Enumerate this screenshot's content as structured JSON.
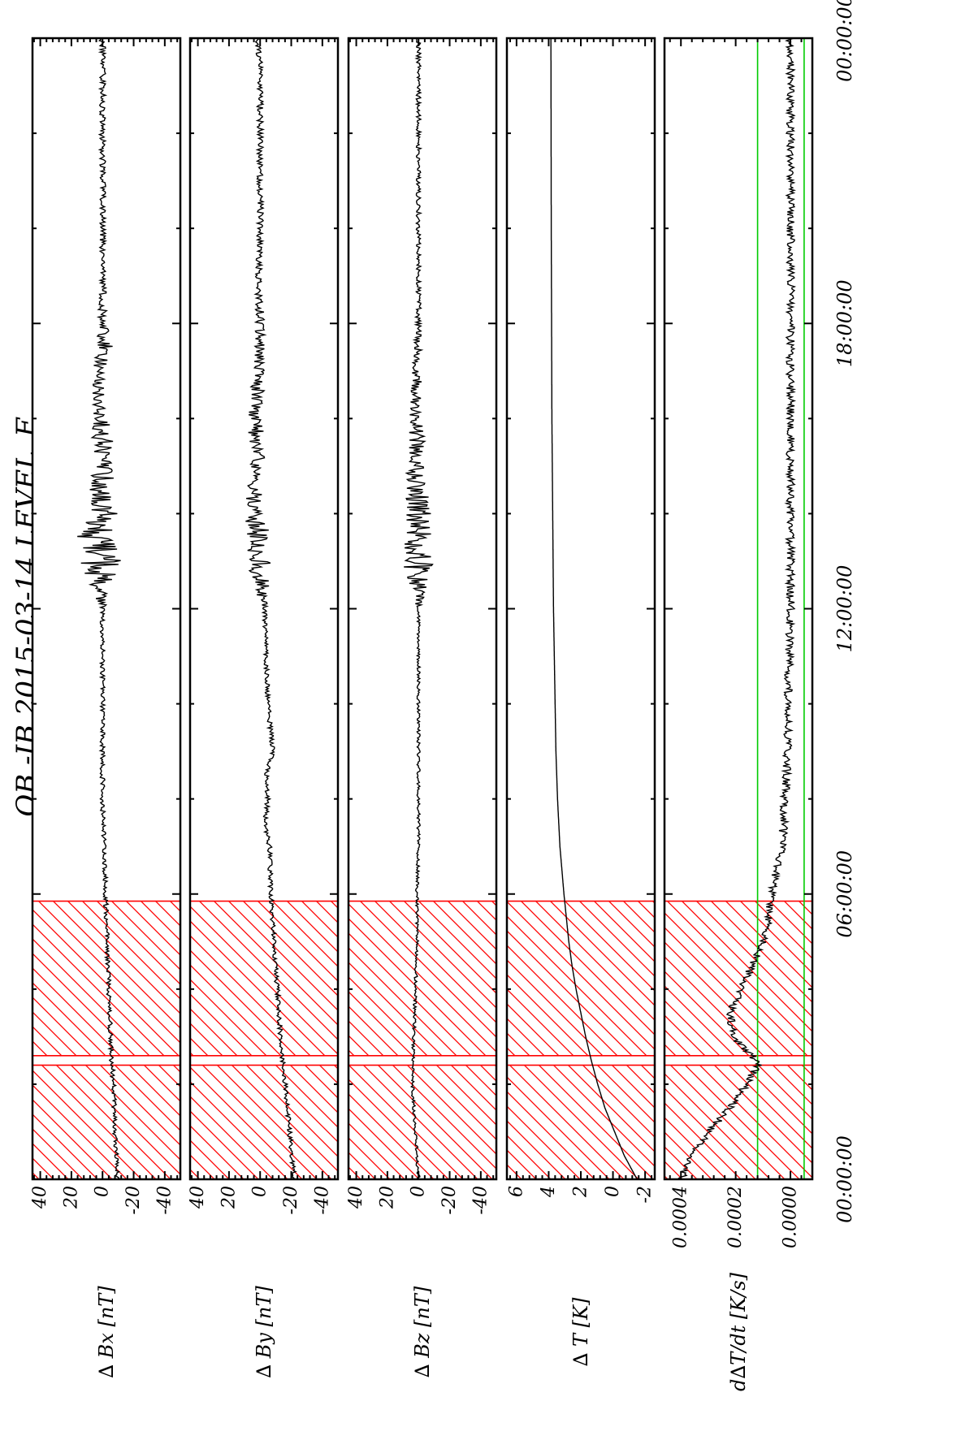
{
  "title": "OB -IB  2015-03-14 LEVEL_F",
  "chart_data": {
    "type": "line",
    "x_unit": "hours",
    "x_ticks": [
      {
        "value": 0,
        "label": "00:00:00"
      },
      {
        "value": 6,
        "label": "06:00:00"
      },
      {
        "value": 12,
        "label": "12:00:00"
      },
      {
        "value": 18,
        "label": "18:00:00"
      },
      {
        "value": 24,
        "label": "00:00:00"
      }
    ],
    "xlim": [
      0,
      24
    ],
    "shaded_intervals": [
      [
        0,
        2.4
      ],
      [
        2.6,
        5.85
      ]
    ],
    "panels": [
      {
        "ylabel": "∆ Bx [nT]",
        "ylim": [
          -50,
          45
        ],
        "ticks": [
          {
            "value": 40,
            "label": "40"
          },
          {
            "value": 20,
            "label": "20"
          },
          {
            "value": 0,
            "label": "0"
          },
          {
            "value": -20,
            "label": "-20"
          },
          {
            "value": -40,
            "label": "-40"
          }
        ],
        "series": {
          "x": [
            0,
            1,
            2,
            3,
            4,
            5,
            6,
            7,
            8,
            9,
            10,
            11,
            12,
            13,
            13.5,
            14,
            14.5,
            15,
            15.5,
            16,
            17,
            17.5,
            18,
            19,
            20,
            21,
            22,
            23,
            24
          ],
          "y": [
            -10,
            -8,
            -7,
            -5,
            -4,
            -3,
            -2,
            -1,
            0,
            0,
            0,
            0,
            0,
            2,
            5,
            0,
            2,
            -2,
            0,
            1,
            3,
            -2,
            0,
            0,
            0,
            0,
            0,
            0,
            0
          ]
        },
        "noise": [
          1.5,
          1.5,
          1.5,
          1.5,
          1.5,
          1.5,
          1.5,
          1.5,
          1.5,
          1.5,
          1.5,
          1.5,
          1.5,
          14,
          12,
          10,
          8,
          7,
          7,
          5,
          4,
          6,
          3,
          2,
          2,
          2,
          2,
          2,
          2
        ]
      },
      {
        "ylabel": "∆ By [nT]",
        "ylim": [
          -50,
          45
        ],
        "ticks": [
          {
            "value": 40,
            "label": "40"
          },
          {
            "value": 20,
            "label": "20"
          },
          {
            "value": 0,
            "label": "0"
          },
          {
            "value": -20,
            "label": "-20"
          },
          {
            "value": -40,
            "label": "-40"
          }
        ],
        "series": {
          "x": [
            0,
            1,
            2,
            3,
            4,
            5,
            6,
            7,
            7.5,
            8,
            8.5,
            9,
            10,
            11,
            12,
            13,
            13.5,
            14,
            14.5,
            15,
            16,
            17,
            18,
            19,
            20,
            21,
            22,
            23,
            24
          ],
          "y": [
            -22,
            -19,
            -16,
            -13,
            -11,
            -9,
            -7,
            -6,
            -3,
            -5,
            -4,
            -8,
            -5,
            -4,
            -3,
            2,
            0,
            5,
            3,
            2,
            3,
            1,
            0,
            1,
            0,
            0,
            0,
            0,
            1
          ]
        },
        "noise": [
          1.5,
          1.5,
          1.5,
          1.5,
          1.5,
          1.5,
          1.5,
          1.5,
          1.5,
          1.5,
          1.5,
          1.5,
          1.5,
          1.5,
          1.5,
          9,
          8,
          6,
          5,
          5,
          5,
          4,
          3,
          2,
          2,
          2,
          2,
          2,
          2
        ]
      },
      {
        "ylabel": "∆ Bz [nT]",
        "ylim": [
          -50,
          45
        ],
        "ticks": [
          {
            "value": 40,
            "label": "40"
          },
          {
            "value": 20,
            "label": "20"
          },
          {
            "value": 0,
            "label": "0"
          },
          {
            "value": -20,
            "label": "-20"
          },
          {
            "value": -40,
            "label": "-40"
          }
        ],
        "series": {
          "x": [
            0,
            1,
            2,
            3,
            4,
            5,
            6,
            7,
            8,
            9,
            10,
            11,
            12,
            13,
            13.5,
            14,
            14.5,
            15,
            15.5,
            16,
            17,
            18,
            19,
            20,
            21,
            22,
            23,
            24
          ],
          "y": [
            0,
            2,
            4,
            3,
            2,
            1,
            1,
            0,
            0,
            0,
            0,
            0,
            0,
            0,
            0,
            0,
            1,
            2,
            0,
            2,
            1,
            0,
            0,
            0,
            0,
            0,
            0,
            0
          ]
        },
        "noise": [
          1,
          1,
          1,
          1,
          1,
          1,
          1,
          1,
          1,
          1,
          1,
          1,
          1,
          11,
          9,
          8,
          7,
          6,
          6,
          4,
          3,
          2,
          1.5,
          1.5,
          1.5,
          1.5,
          1.5,
          1.5
        ]
      },
      {
        "ylabel": "∆ T [K]",
        "ylim": [
          -2.6,
          6.6
        ],
        "ticks": [
          {
            "value": 6,
            "label": "6"
          },
          {
            "value": 4,
            "label": "4"
          },
          {
            "value": 2,
            "label": "2"
          },
          {
            "value": 0,
            "label": "0"
          },
          {
            "value": -2,
            "label": "-2"
          }
        ],
        "series": {
          "x": [
            0,
            0.5,
            1,
            1.5,
            2,
            2.5,
            3,
            3.5,
            4,
            4.5,
            5,
            5.5,
            6,
            7,
            8,
            9,
            10,
            12,
            14,
            16,
            18,
            20,
            22,
            24
          ],
          "y": [
            -1.5,
            -0.7,
            -0.1,
            0.5,
            0.95,
            1.35,
            1.7,
            2.0,
            2.3,
            2.55,
            2.75,
            2.9,
            3.05,
            3.3,
            3.45,
            3.55,
            3.6,
            3.7,
            3.75,
            3.8,
            3.82,
            3.84,
            3.85,
            3.86
          ]
        },
        "noise": [
          0
        ]
      },
      {
        "ylabel": "d∆T/dt [K/s]",
        "ylim": [
          -8e-05,
          0.00046
        ],
        "ticks": [
          {
            "value": 0.0004,
            "label": "0.0004"
          },
          {
            "value": 0.0002,
            "label": "0.0002"
          },
          {
            "value": 0.0,
            "label": "0.0000"
          }
        ],
        "series": {
          "x": [
            0,
            0.5,
            1,
            1.5,
            2,
            2.4,
            2.6,
            3,
            3.5,
            4,
            4.5,
            5,
            5.5,
            6,
            6.5,
            7,
            8,
            9,
            10,
            12,
            14,
            16,
            18,
            20,
            22,
            24
          ],
          "y": [
            0.0004,
            0.00036,
            0.0003,
            0.00022,
            0.00016,
            0.00012,
            0.00014,
            0.00021,
            0.00022,
            0.00018,
            0.00014,
            0.0001,
            8e-05,
            7e-05,
            5e-05,
            3e-05,
            2e-05,
            1e-05,
            1e-05,
            0.0,
            0.0,
            0.0,
            0.0,
            0.0,
            0.0,
            0.0
          ]
        },
        "noise": [
          1.5e-05
        ],
        "reference_lines": [
          0.00012,
          -5e-05
        ]
      }
    ]
  },
  "colors": {
    "line": "#000000",
    "hatch": "#ff0000",
    "reference": "#00cc00",
    "frame": "#000000"
  }
}
